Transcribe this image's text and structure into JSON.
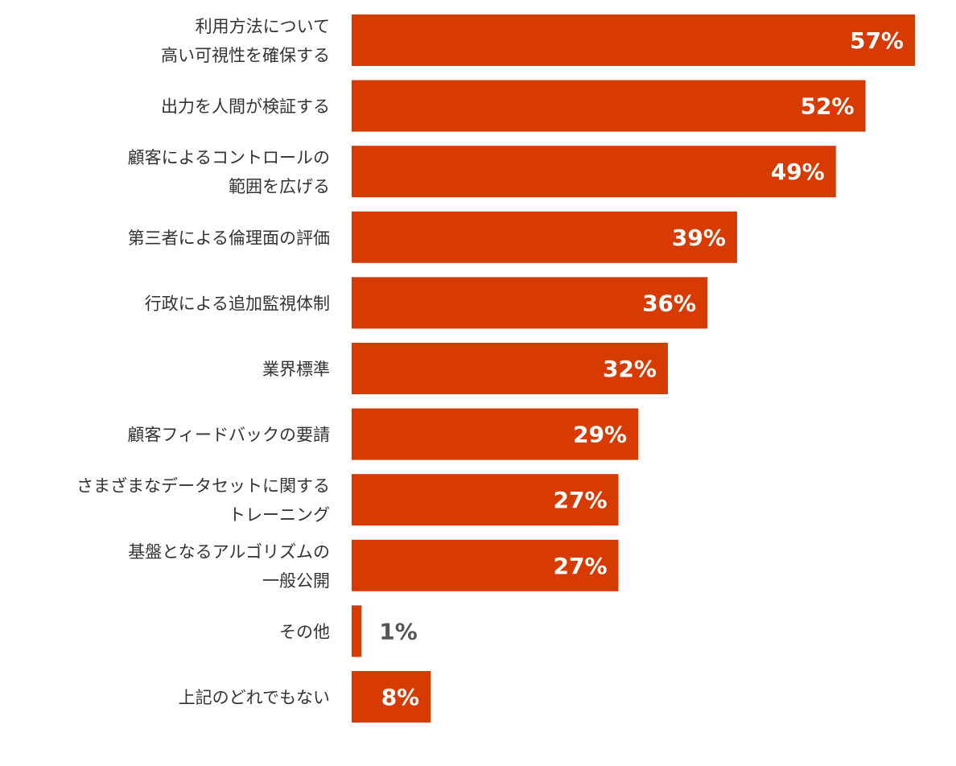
{
  "chart_data": {
    "type": "bar",
    "orientation": "horizontal",
    "categories": [
      [
        "利用方法について",
        "高い可視性を確保する"
      ],
      [
        "出力を人間が検証する"
      ],
      [
        "顧客によるコントロールの",
        "範囲を広げる"
      ],
      [
        "第三者による倫理面の評価"
      ],
      [
        "行政による追加監視体制"
      ],
      [
        "業界標準"
      ],
      [
        "顧客フィードバックの要請"
      ],
      [
        "さまざまなデータセットに関する",
        "トレーニング"
      ],
      [
        "基盤となるアルゴリズムの",
        "一般公開"
      ],
      [
        "その他"
      ],
      [
        "上記のどれでもない"
      ]
    ],
    "values": [
      57,
      52,
      49,
      39,
      36,
      32,
      29,
      27,
      27,
      1,
      8
    ],
    "value_labels": [
      "57%",
      "52%",
      "49%",
      "39%",
      "36%",
      "32%",
      "29%",
      "27%",
      "27%",
      "1%",
      "8%"
    ],
    "xlim": [
      0,
      57
    ],
    "bar_color": "#d83b01",
    "label_inside_color": "#ffffff",
    "label_outside_color": "#555555",
    "category_label_color": "#333333",
    "grid": false,
    "legend": "none"
  }
}
